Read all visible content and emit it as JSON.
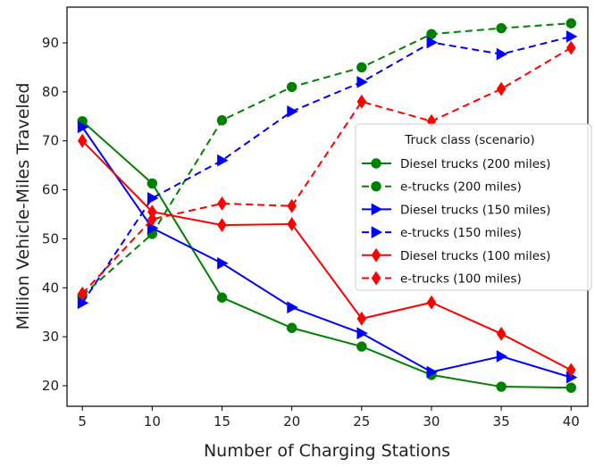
{
  "chart_data": {
    "type": "line",
    "xlabel": "Number of Charging Stations",
    "ylabel": "Million Vehicle-Miles Traveled",
    "x": [
      5,
      10,
      15,
      20,
      25,
      30,
      35,
      40
    ],
    "x_ticks": [
      "5",
      "10",
      "15",
      "20",
      "25",
      "30",
      "35",
      "40"
    ],
    "y_ticks": [
      "20",
      "30",
      "40",
      "50",
      "60",
      "70",
      "80",
      "90"
    ],
    "xlim": [
      3.9,
      41.2
    ],
    "ylim": [
      15.8,
      97.3
    ],
    "grid": false,
    "legend": {
      "title": "Truck class (scenario)",
      "placement": "center-right"
    },
    "series": [
      {
        "name": "Diesel trucks (200 miles)",
        "color": "#008000",
        "line": "solid",
        "marker": "circle",
        "values": [
          74.0,
          61.3,
          38.0,
          31.8,
          28.0,
          22.2,
          19.8,
          19.6
        ]
      },
      {
        "name": "e-trucks (200 miles)",
        "color": "#008000",
        "line": "dashed",
        "marker": "circle",
        "values": [
          38.4,
          51.0,
          74.2,
          81.0,
          85.0,
          91.8,
          93.0,
          94.0
        ]
      },
      {
        "name": "Diesel trucks (150 miles)",
        "color": "#0000ff",
        "line": "solid",
        "marker": "triangle-right",
        "values": [
          72.8,
          52.2,
          45.0,
          36.0,
          30.7,
          22.8,
          26.0,
          21.7
        ]
      },
      {
        "name": "e-trucks (150 miles)",
        "color": "#0000ff",
        "line": "dashed",
        "marker": "triangle-right",
        "values": [
          36.9,
          58.3,
          66.0,
          76.0,
          82.0,
          90.1,
          87.7,
          91.3
        ]
      },
      {
        "name": "Diesel trucks (100 miles)",
        "color": "#ff0000",
        "line": "solid",
        "marker": "diamond",
        "values": [
          70.0,
          55.5,
          52.8,
          53.0,
          33.7,
          37.0,
          30.6,
          23.2
        ]
      },
      {
        "name": "e-trucks (100 miles)",
        "color": "#ff0000",
        "line": "dashed",
        "marker": "diamond",
        "values": [
          38.8,
          54.0,
          57.2,
          56.7,
          78.0,
          74.0,
          80.6,
          89.0
        ]
      }
    ]
  }
}
